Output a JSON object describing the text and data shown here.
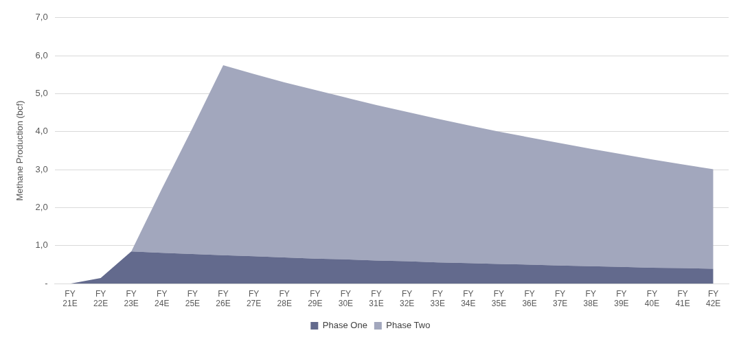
{
  "chart_data": {
    "type": "area",
    "stacked": true,
    "ylabel": "Methane Production (bcf)",
    "categories": [
      "FY 21E",
      "FY 22E",
      "FY 23E",
      "FY 24E",
      "FY 25E",
      "FY 26E",
      "FY 27E",
      "FY 28E",
      "FY 29E",
      "FY 30E",
      "FY 31E",
      "FY 32E",
      "FY 33E",
      "FY 34E",
      "FY 35E",
      "FY 36E",
      "FY 37E",
      "FY 38E",
      "FY 39E",
      "FY 40E",
      "FY 41E",
      "FY 42E"
    ],
    "series": [
      {
        "name": "Phase One",
        "color": "#636a8d",
        "values": [
          0,
          0.15,
          0.85,
          0.81,
          0.78,
          0.75,
          0.72,
          0.69,
          0.66,
          0.64,
          0.61,
          0.59,
          0.56,
          0.54,
          0.52,
          0.5,
          0.48,
          0.46,
          0.44,
          0.42,
          0.41,
          0.39
        ]
      },
      {
        "name": "Phase Two",
        "color": "#a2a7bd",
        "values": [
          null,
          null,
          0,
          1.69,
          3.32,
          5.0,
          4.8,
          4.61,
          4.44,
          4.26,
          4.09,
          3.93,
          3.78,
          3.63,
          3.48,
          3.35,
          3.22,
          3.09,
          2.97,
          2.85,
          2.73,
          2.62
        ]
      }
    ],
    "ylim": [
      0,
      7
    ],
    "yticks": [
      {
        "value": 0,
        "label": "-"
      },
      {
        "value": 1,
        "label": "1,0"
      },
      {
        "value": 2,
        "label": "2,0"
      },
      {
        "value": 3,
        "label": "3,0"
      },
      {
        "value": 4,
        "label": "4,0"
      },
      {
        "value": 5,
        "label": "5,0"
      },
      {
        "value": 6,
        "label": "6,0"
      },
      {
        "value": 7,
        "label": "7,0"
      }
    ],
    "grid": "y",
    "legend": "bottom"
  }
}
